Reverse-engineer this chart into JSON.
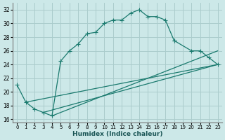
{
  "xlabel": "Humidex (Indice chaleur)",
  "bg_color": "#cce8e8",
  "grid_color": "#aacccc",
  "line_color": "#1a7a6e",
  "xlim": [
    -0.5,
    23.5
  ],
  "ylim": [
    15.5,
    33
  ],
  "yticks": [
    16,
    18,
    20,
    22,
    24,
    26,
    28,
    30,
    32
  ],
  "xticks": [
    0,
    1,
    2,
    3,
    4,
    5,
    6,
    7,
    8,
    9,
    10,
    11,
    12,
    13,
    14,
    15,
    16,
    17,
    18,
    19,
    20,
    21,
    22,
    23
  ],
  "curve_main": {
    "x": [
      0,
      1,
      2,
      3,
      4,
      5,
      6,
      7,
      8,
      9,
      10,
      11,
      12,
      13,
      14,
      15,
      16,
      17,
      18
    ],
    "y": [
      21.0,
      18.5,
      17.5,
      17.0,
      16.5,
      24.5,
      26.0,
      27.0,
      28.5,
      28.7,
      30.0,
      30.5,
      30.5,
      31.5,
      32.0,
      31.0,
      31.0,
      30.5,
      27.5
    ]
  },
  "curve_upper_right": {
    "x": [
      18,
      20,
      21,
      22,
      23
    ],
    "y": [
      27.5,
      26.0,
      26.0,
      25.0,
      24.0
    ]
  },
  "line_mid": {
    "x": [
      4,
      23
    ],
    "y": [
      16.5,
      26.0
    ]
  },
  "line_bot1": {
    "x": [
      1,
      23
    ],
    "y": [
      18.5,
      24.0
    ]
  },
  "line_bot2": {
    "x": [
      3,
      23
    ],
    "y": [
      17.0,
      24.0
    ]
  }
}
